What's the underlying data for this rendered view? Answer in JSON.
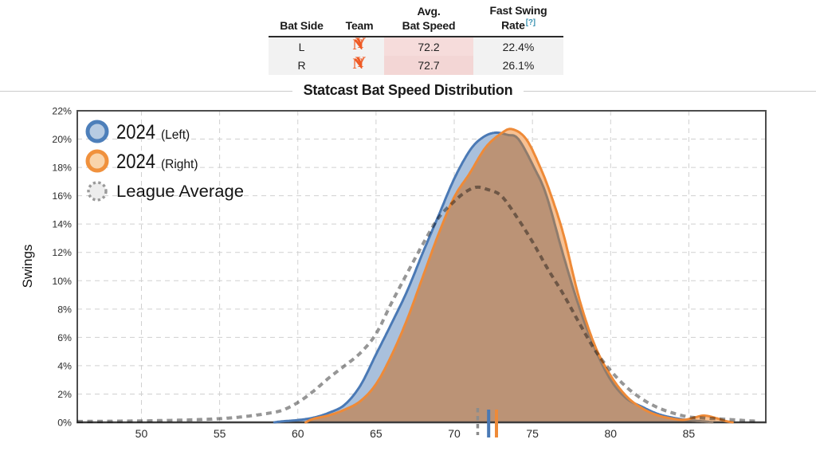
{
  "table": {
    "headers": {
      "bat_side": "Bat Side",
      "team": "Team",
      "avg_line1": "Avg.",
      "avg_line2": "Bat Speed",
      "fast_line1": "Fast Swing",
      "fast_line2": "Rate",
      "help": "[?]"
    },
    "logo": {
      "l1": "N",
      "l2": "Y"
    },
    "rows": [
      {
        "side": "L",
        "avg": "72.2",
        "rate": "22.4%"
      },
      {
        "side": "R",
        "avg": "72.7",
        "rate": "26.1%"
      }
    ]
  },
  "title": "Statcast Bat Speed Distribution",
  "chart_data": {
    "type": "area",
    "title": "Statcast Bat Speed Distribution",
    "xlabel": "",
    "ylabel": "Swings",
    "xlim": [
      45.9,
      89.92
    ],
    "ylim": [
      0,
      22
    ],
    "x_ticks": [
      50,
      55,
      60,
      65,
      70,
      75,
      80,
      85
    ],
    "y_ticks": [
      "0%",
      "2%",
      "4%",
      "6%",
      "8%",
      "10%",
      "12%",
      "14%",
      "16%",
      "18%",
      "20%",
      "22%"
    ],
    "grid": "dashed",
    "legend": [
      {
        "label": "2024",
        "sub": "(Left)",
        "series": "left"
      },
      {
        "label": "2024",
        "sub": "(Right)",
        "series": "right"
      },
      {
        "label": "League Average",
        "sub": "",
        "series": "league"
      }
    ],
    "means": {
      "league": 71.5,
      "left": 72.2,
      "right": 72.7
    },
    "series": [
      {
        "name": "2024 (Left)",
        "key": "left",
        "x": [
          58.5,
          59,
          60,
          61,
          62,
          63,
          64,
          65,
          66,
          67,
          68,
          69,
          70,
          71,
          71.8,
          72.6,
          73.4,
          74.1,
          75.1,
          75.9,
          77,
          78,
          79,
          80,
          81,
          82,
          83,
          84,
          85,
          86,
          86.5
        ],
        "y": [
          0,
          0.07,
          0.16,
          0.33,
          0.68,
          1.25,
          2.6,
          4.8,
          7.0,
          9.3,
          12.0,
          14.6,
          17.2,
          19.2,
          20.1,
          20.45,
          20.3,
          20.0,
          18.0,
          16.0,
          11.7,
          8.1,
          5.2,
          3.0,
          1.7,
          1.1,
          0.6,
          0.32,
          0.16,
          0.06,
          0
        ]
      },
      {
        "name": "2024 (Right)",
        "key": "right",
        "x": [
          60.5,
          61,
          62,
          63,
          64,
          65,
          66,
          67,
          68,
          69,
          70,
          71,
          72,
          73,
          73.7,
          74.6,
          75.5,
          76.2,
          77,
          78,
          79,
          80,
          81,
          82,
          83,
          84,
          84.7,
          85.4,
          86,
          86.8,
          87.4,
          87.8
        ],
        "y": [
          0,
          0.25,
          0.5,
          0.9,
          1.5,
          2.7,
          4.75,
          7.3,
          10.3,
          13.3,
          15.9,
          17.6,
          19.4,
          20.4,
          20.7,
          20.0,
          18.0,
          16.0,
          13.2,
          8.7,
          5.4,
          3.3,
          1.85,
          1.0,
          0.5,
          0.25,
          0.18,
          0.35,
          0.48,
          0.28,
          0.08,
          0
        ]
      },
      {
        "name": "League Average",
        "key": "league",
        "x": [
          45.9,
          47,
          48,
          49,
          50,
          51,
          52,
          53,
          54,
          55,
          56,
          57,
          58,
          59,
          60,
          61,
          62,
          63,
          64,
          65,
          66,
          67,
          68,
          69,
          70,
          70.7,
          71.4,
          72.1,
          73,
          74,
          75,
          76,
          77,
          78,
          79,
          80,
          81,
          82,
          83,
          84,
          85,
          86,
          87,
          88,
          89,
          89.5
        ],
        "y": [
          0.06,
          0.07,
          0.08,
          0.09,
          0.1,
          0.12,
          0.14,
          0.17,
          0.21,
          0.26,
          0.34,
          0.46,
          0.62,
          0.85,
          1.4,
          2.2,
          3.15,
          4.0,
          4.9,
          6.25,
          8.45,
          10.55,
          12.6,
          14.45,
          15.6,
          16.25,
          16.6,
          16.45,
          16.0,
          14.5,
          12.75,
          10.8,
          9.0,
          7.0,
          5.1,
          3.65,
          2.5,
          1.65,
          1.05,
          0.65,
          0.38,
          0.3,
          0.24,
          0.17,
          0.1,
          0.08
        ]
      }
    ],
    "colors": {
      "blue_line": "#4a79b5",
      "blue_fill": "#a9c0dc",
      "blue_under": "#8f7c6d",
      "orange_line": "#ee8a38",
      "orange_fill": "#f7c193",
      "overlap_fill": "#bb9376",
      "league_line": "#969696",
      "grid": "#d0d0d0",
      "border": "#4d4d4d",
      "tick_text": "#2b2b2b"
    }
  }
}
